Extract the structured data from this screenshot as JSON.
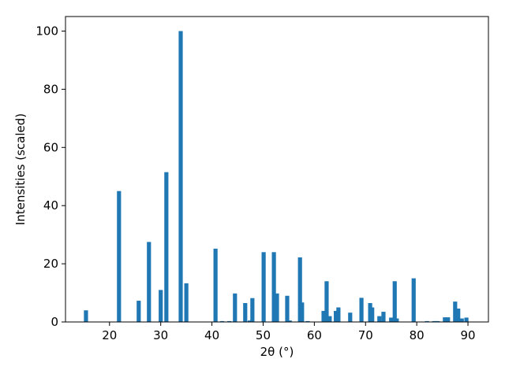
{
  "chart_data": {
    "type": "bar",
    "xlabel": "2θ (°)",
    "ylabel": "Intensities (scaled)",
    "color": "#1f77b4",
    "grid": false,
    "xlim": [
      11.4,
      94.0
    ],
    "ylim": [
      0,
      105
    ],
    "xticks": [
      20,
      30,
      40,
      50,
      60,
      70,
      80,
      90
    ],
    "yticks": [
      0,
      20,
      40,
      60,
      80,
      100
    ],
    "x": [
      15.4,
      21.85,
      25.7,
      27.7,
      30.0,
      31.1,
      33.9,
      35.0,
      40.7,
      42.0,
      43.4,
      44.5,
      46.5,
      47.4,
      47.9,
      50.1,
      52.1,
      52.7,
      54.7,
      55.2,
      57.2,
      57.6,
      58.7,
      61.8,
      62.4,
      63.0,
      64.2,
      64.7,
      67.0,
      69.2,
      70.9,
      71.3,
      72.7,
      73.5,
      75.0,
      75.7,
      76.1,
      79.4,
      82.0,
      83.4,
      84.1,
      85.5,
      86.1,
      87.5,
      88.1,
      88.8,
      89.7
    ],
    "values": [
      4,
      45,
      7.3,
      27.5,
      11,
      51.5,
      100,
      13.3,
      25.2,
      0.3,
      0.3,
      9.8,
      6.5,
      0.5,
      8.2,
      24,
      24,
      9.8,
      9,
      0.5,
      22.2,
      6.7,
      0.3,
      3.8,
      14,
      2,
      3.8,
      5,
      3.2,
      8.3,
      6.5,
      5,
      2,
      3.5,
      1.5,
      14,
      1.2,
      15,
      0.3,
      0.3,
      0.3,
      1.6,
      1.6,
      7,
      4.6,
      1.2,
      1.5
    ]
  }
}
